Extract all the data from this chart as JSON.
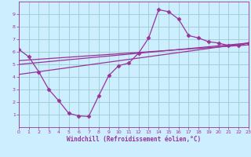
{
  "xlabel": "Windchill (Refroidissement éolien,°C)",
  "bg_color": "#cceeff",
  "line_color": "#993399",
  "xlim": [
    0,
    23
  ],
  "ylim": [
    0,
    10
  ],
  "xticks": [
    0,
    1,
    2,
    3,
    4,
    5,
    6,
    7,
    8,
    9,
    10,
    11,
    12,
    13,
    14,
    15,
    16,
    17,
    18,
    19,
    20,
    21,
    22,
    23
  ],
  "yticks": [
    1,
    2,
    3,
    4,
    5,
    6,
    7,
    8,
    9
  ],
  "line1_x": [
    0,
    1,
    2,
    3,
    4,
    5,
    6,
    7,
    8,
    9,
    10,
    11,
    12,
    13,
    14,
    15,
    16,
    17,
    18,
    19,
    20,
    21,
    22,
    23
  ],
  "line1_y": [
    6.2,
    5.6,
    4.4,
    3.0,
    2.1,
    1.1,
    0.9,
    0.85,
    2.5,
    4.1,
    4.9,
    5.1,
    5.9,
    7.1,
    9.35,
    9.2,
    8.6,
    7.3,
    7.1,
    6.8,
    6.7,
    6.5,
    6.5,
    6.7
  ],
  "line2_x": [
    0,
    23
  ],
  "line2_y": [
    5.0,
    6.7
  ],
  "line3_x": [
    0,
    23
  ],
  "line3_y": [
    5.3,
    6.55
  ],
  "line4_x": [
    0,
    23
  ],
  "line4_y": [
    4.2,
    6.7
  ],
  "grid_color": "#99cccc"
}
